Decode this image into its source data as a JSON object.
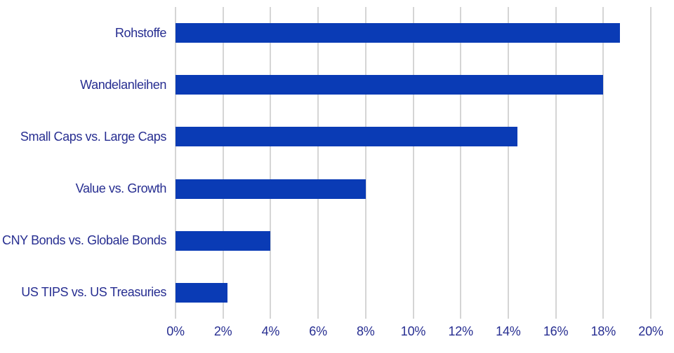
{
  "chart_data": {
    "type": "bar",
    "orientation": "horizontal",
    "title": "",
    "xlabel": "",
    "ylabel": "",
    "categories": [
      "Rohstoffe",
      "Wandelanleihen",
      "Small Caps vs. Large Caps",
      "Value vs. Growth",
      "CNY Bonds vs. Globale Bonds",
      "US TIPS vs. US Treasuries"
    ],
    "values": [
      18.7,
      18.0,
      14.4,
      8.0,
      4.0,
      2.2
    ],
    "value_suffix": "%",
    "xlim": [
      0,
      20
    ],
    "x_tick_step": 2,
    "x_tick_labels": [
      "0%",
      "2%",
      "4%",
      "6%",
      "8%",
      "10%",
      "12%",
      "14%",
      "16%",
      "18%",
      "20%"
    ],
    "grid": true,
    "gridline_orientation": "vertical",
    "legend": "none",
    "colors": {
      "bar": "#0a3bb5",
      "label_text": "#272e91",
      "gridline": "#ababab",
      "background": "#ffffff"
    }
  }
}
